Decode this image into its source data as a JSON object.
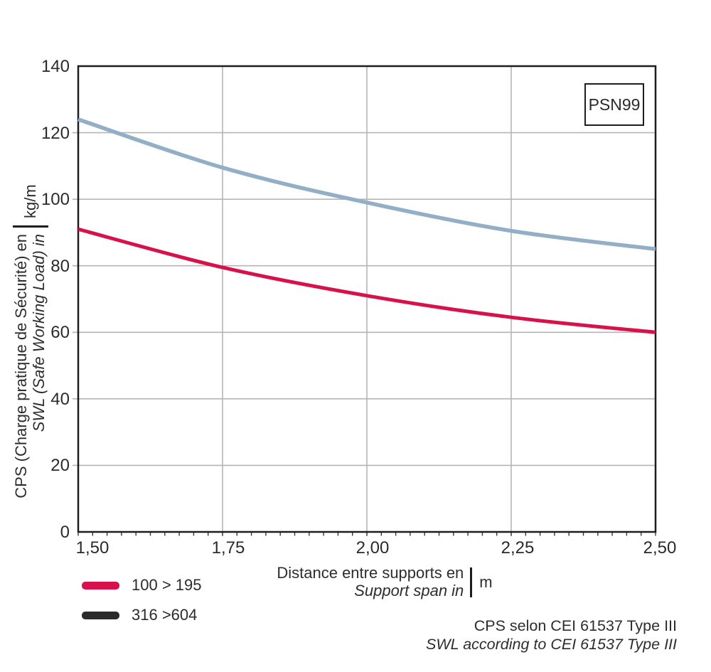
{
  "chart": {
    "badge": "PSN99",
    "y_axis": {
      "title_line1": "CPS (Charge pratique de Sécurité) en",
      "title_line2": "SWL (Safe Working Load) in",
      "unit": "kg/m",
      "ticks": [
        {
          "label": "140",
          "value": 140
        },
        {
          "label": "120",
          "value": 120
        },
        {
          "label": "100",
          "value": 100
        },
        {
          "label": "80",
          "value": 80
        },
        {
          "label": "60",
          "value": 60
        },
        {
          "label": "40",
          "value": 40
        },
        {
          "label": "20",
          "value": 20
        },
        {
          "label": "0",
          "value": 0
        }
      ]
    },
    "x_axis": {
      "title_line1": "Distance entre supports en",
      "title_line2": "Support span in",
      "unit": "m",
      "ticks": [
        {
          "label": "1,50",
          "value": 1.5
        },
        {
          "label": "1,75",
          "value": 1.75
        },
        {
          "label": "2,00",
          "value": 2.0
        },
        {
          "label": "2,25",
          "value": 2.25
        },
        {
          "label": "2,50",
          "value": 2.5
        }
      ]
    },
    "legend": [
      {
        "label": "100 > 195",
        "color": "#d8114b"
      },
      {
        "label": "316 >604",
        "color": "#2b2a2a"
      }
    ],
    "footnote_line1": "CPS selon CEI 61537 Type III",
    "footnote_line2": "SWL according to CEI 61537 Type III"
  },
  "chart_data": {
    "type": "line",
    "x": [
      1.5,
      1.75,
      2.0,
      2.25,
      2.5
    ],
    "series": [
      {
        "name": "upper-curve",
        "color": "#92afc7",
        "stroke_width": 5.5,
        "values": [
          124,
          109.5,
          99,
          90.5,
          85
        ]
      },
      {
        "name": "lower-curve",
        "color": "#d8114b",
        "stroke_width": 5,
        "values": [
          91,
          79.5,
          71,
          64.5,
          60
        ]
      }
    ],
    "title": "",
    "xlabel": "Distance entre supports en / Support span in (m)",
    "ylabel": "CPS (Charge pratique de Sécurité) / SWL (Safe Working Load) (kg/m)",
    "xlim": [
      1.5,
      2.5
    ],
    "ylim": [
      0,
      140
    ],
    "x_major_step": 0.25,
    "x_minor_step": 0.025,
    "y_major_step": 20,
    "grid": true,
    "legend_position": "bottom-left",
    "colors": {
      "grid": "#b5b5b5",
      "frame": "#1d1d1b",
      "minor_tick": "#3a3a3a"
    }
  }
}
